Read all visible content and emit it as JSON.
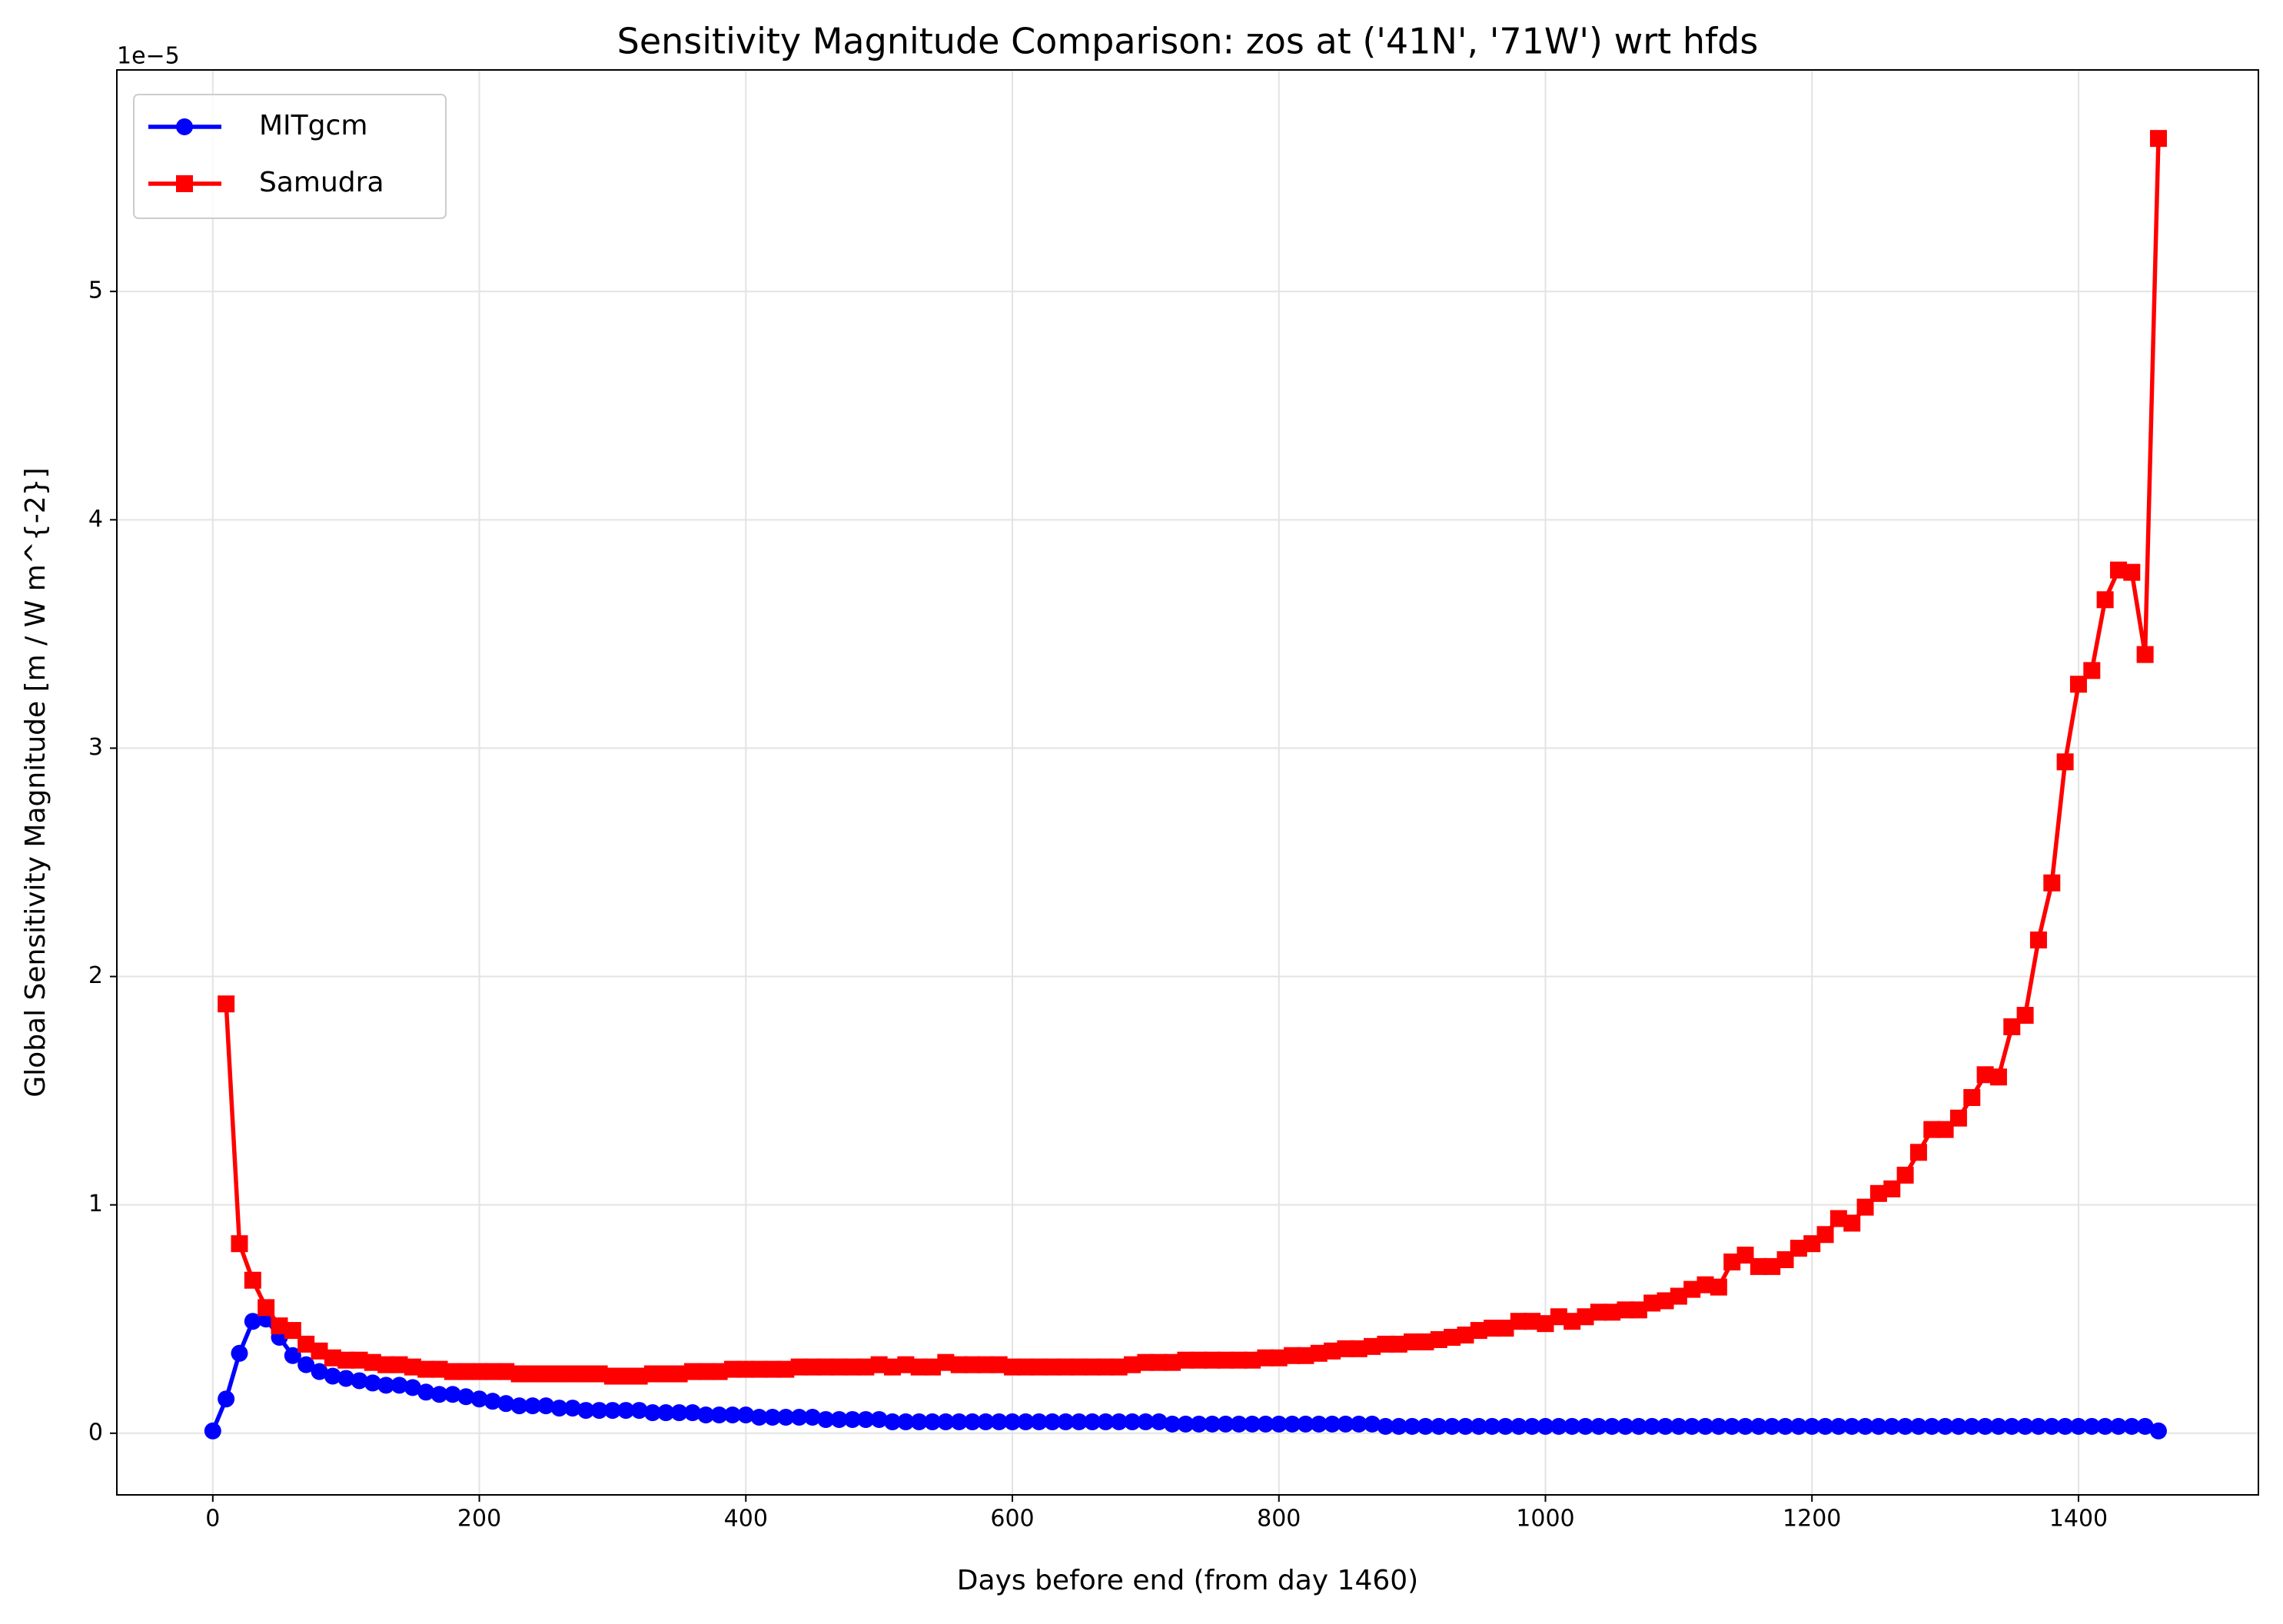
{
  "chart_data": {
    "type": "line",
    "title": "Sensitivity Magnitude Comparison: zos at ('41N', '71W') wrt hfds",
    "xlabel": "Days before end (from day 1460)",
    "ylabel": "Global Sensitivity Magnitude [m / W m^{-2}]",
    "y_offset_label": "1e−5",
    "xlim": [
      -72,
      1535
    ],
    "ylim": [
      -0.27,
      5.97
    ],
    "xticks": [
      0,
      200,
      400,
      600,
      800,
      1000,
      1200,
      1400
    ],
    "yticks": [
      0,
      1,
      2,
      3,
      4,
      5
    ],
    "grid": true,
    "legend": "upper left",
    "series": [
      {
        "name": "MITgcm",
        "color": "#0000ff",
        "marker": "circle",
        "x": [
          0,
          10,
          20,
          30,
          40,
          50,
          60,
          70,
          80,
          90,
          100,
          110,
          120,
          130,
          140,
          150,
          160,
          170,
          180,
          190,
          200,
          210,
          220,
          230,
          240,
          250,
          260,
          270,
          280,
          290,
          300,
          310,
          320,
          330,
          340,
          350,
          360,
          370,
          380,
          390,
          400,
          410,
          420,
          430,
          440,
          450,
          460,
          470,
          480,
          490,
          500,
          510,
          520,
          530,
          540,
          550,
          560,
          570,
          580,
          590,
          600,
          610,
          620,
          630,
          640,
          650,
          660,
          670,
          680,
          690,
          700,
          710,
          720,
          730,
          740,
          750,
          760,
          770,
          780,
          790,
          800,
          810,
          820,
          830,
          840,
          850,
          860,
          870,
          880,
          890,
          900,
          910,
          920,
          930,
          940,
          950,
          960,
          970,
          980,
          990,
          1000,
          1010,
          1020,
          1030,
          1040,
          1050,
          1060,
          1070,
          1080,
          1090,
          1100,
          1110,
          1120,
          1130,
          1140,
          1150,
          1160,
          1170,
          1180,
          1190,
          1200,
          1210,
          1220,
          1230,
          1240,
          1250,
          1260,
          1270,
          1280,
          1290,
          1300,
          1310,
          1320,
          1330,
          1340,
          1350,
          1360,
          1370,
          1380,
          1390,
          1400,
          1410,
          1420,
          1430,
          1440,
          1450,
          1460
        ],
        "values": [
          0.01,
          0.15,
          0.35,
          0.49,
          0.5,
          0.42,
          0.34,
          0.3,
          0.27,
          0.25,
          0.24,
          0.23,
          0.22,
          0.21,
          0.21,
          0.2,
          0.18,
          0.17,
          0.17,
          0.16,
          0.15,
          0.14,
          0.13,
          0.12,
          0.12,
          0.12,
          0.11,
          0.11,
          0.1,
          0.1,
          0.1,
          0.1,
          0.1,
          0.09,
          0.09,
          0.09,
          0.09,
          0.08,
          0.08,
          0.08,
          0.08,
          0.07,
          0.07,
          0.07,
          0.07,
          0.07,
          0.06,
          0.06,
          0.06,
          0.06,
          0.06,
          0.05,
          0.05,
          0.05,
          0.05,
          0.05,
          0.05,
          0.05,
          0.05,
          0.05,
          0.05,
          0.05,
          0.05,
          0.05,
          0.05,
          0.05,
          0.05,
          0.05,
          0.05,
          0.05,
          0.05,
          0.05,
          0.04,
          0.04,
          0.04,
          0.04,
          0.04,
          0.04,
          0.04,
          0.04,
          0.04,
          0.04,
          0.04,
          0.04,
          0.04,
          0.04,
          0.04,
          0.04,
          0.03,
          0.03,
          0.03,
          0.03,
          0.03,
          0.03,
          0.03,
          0.03,
          0.03,
          0.03,
          0.03,
          0.03,
          0.03,
          0.03,
          0.03,
          0.03,
          0.03,
          0.03,
          0.03,
          0.03,
          0.03,
          0.03,
          0.03,
          0.03,
          0.03,
          0.03,
          0.03,
          0.03,
          0.03,
          0.03,
          0.03,
          0.03,
          0.03,
          0.03,
          0.03,
          0.03,
          0.03,
          0.03,
          0.03,
          0.03,
          0.03,
          0.03,
          0.03,
          0.03,
          0.03,
          0.03,
          0.03,
          0.03,
          0.03,
          0.03,
          0.03,
          0.03,
          0.03,
          0.03,
          0.03,
          0.03,
          0.03,
          0.03,
          0.01
        ]
      },
      {
        "name": "Samudra",
        "color": "#ff0000",
        "marker": "square",
        "x": [
          10,
          20,
          30,
          40,
          50,
          60,
          70,
          80,
          90,
          100,
          110,
          120,
          130,
          140,
          150,
          160,
          170,
          180,
          190,
          200,
          210,
          220,
          230,
          240,
          250,
          260,
          270,
          280,
          290,
          300,
          310,
          320,
          330,
          340,
          350,
          360,
          370,
          380,
          390,
          400,
          410,
          420,
          430,
          440,
          450,
          460,
          470,
          480,
          490,
          500,
          510,
          520,
          530,
          540,
          550,
          560,
          570,
          580,
          590,
          600,
          610,
          620,
          630,
          640,
          650,
          660,
          670,
          680,
          690,
          700,
          710,
          720,
          730,
          740,
          750,
          760,
          770,
          780,
          790,
          800,
          810,
          820,
          830,
          840,
          850,
          860,
          870,
          880,
          890,
          900,
          910,
          920,
          930,
          940,
          950,
          960,
          970,
          980,
          990,
          1000,
          1010,
          1020,
          1030,
          1040,
          1050,
          1060,
          1070,
          1080,
          1090,
          1100,
          1110,
          1120,
          1130,
          1140,
          1150,
          1160,
          1170,
          1180,
          1190,
          1200,
          1210,
          1220,
          1230,
          1240,
          1250,
          1260,
          1270,
          1280,
          1290,
          1300,
          1310,
          1320,
          1330,
          1340,
          1350,
          1360,
          1370,
          1380,
          1390,
          1400,
          1410,
          1420,
          1430,
          1440,
          1450,
          1460
        ],
        "values": [
          1.88,
          0.83,
          0.67,
          0.55,
          0.47,
          0.45,
          0.39,
          0.36,
          0.33,
          0.32,
          0.32,
          0.31,
          0.3,
          0.3,
          0.29,
          0.28,
          0.28,
          0.27,
          0.27,
          0.27,
          0.27,
          0.27,
          0.26,
          0.26,
          0.26,
          0.26,
          0.26,
          0.26,
          0.26,
          0.25,
          0.25,
          0.25,
          0.26,
          0.26,
          0.26,
          0.27,
          0.27,
          0.27,
          0.28,
          0.28,
          0.28,
          0.28,
          0.28,
          0.29,
          0.29,
          0.29,
          0.29,
          0.29,
          0.29,
          0.3,
          0.29,
          0.3,
          0.29,
          0.29,
          0.31,
          0.3,
          0.3,
          0.3,
          0.3,
          0.29,
          0.29,
          0.29,
          0.29,
          0.29,
          0.29,
          0.29,
          0.29,
          0.29,
          0.3,
          0.31,
          0.31,
          0.31,
          0.32,
          0.32,
          0.32,
          0.32,
          0.32,
          0.32,
          0.33,
          0.33,
          0.34,
          0.34,
          0.35,
          0.36,
          0.37,
          0.37,
          0.38,
          0.39,
          0.39,
          0.4,
          0.4,
          0.41,
          0.42,
          0.43,
          0.45,
          0.46,
          0.46,
          0.49,
          0.49,
          0.48,
          0.51,
          0.49,
          0.51,
          0.53,
          0.53,
          0.54,
          0.54,
          0.57,
          0.58,
          0.6,
          0.63,
          0.65,
          0.64,
          0.75,
          0.78,
          0.73,
          0.73,
          0.76,
          0.81,
          0.83,
          0.87,
          0.94,
          0.92,
          0.99,
          1.05,
          1.07,
          1.13,
          1.23,
          1.33,
          1.33,
          1.38,
          1.47,
          1.57,
          1.56,
          1.78,
          1.83,
          2.16,
          2.41,
          2.94,
          3.28,
          3.34,
          3.65,
          3.78,
          3.77,
          3.41,
          5.67
        ]
      }
    ]
  }
}
